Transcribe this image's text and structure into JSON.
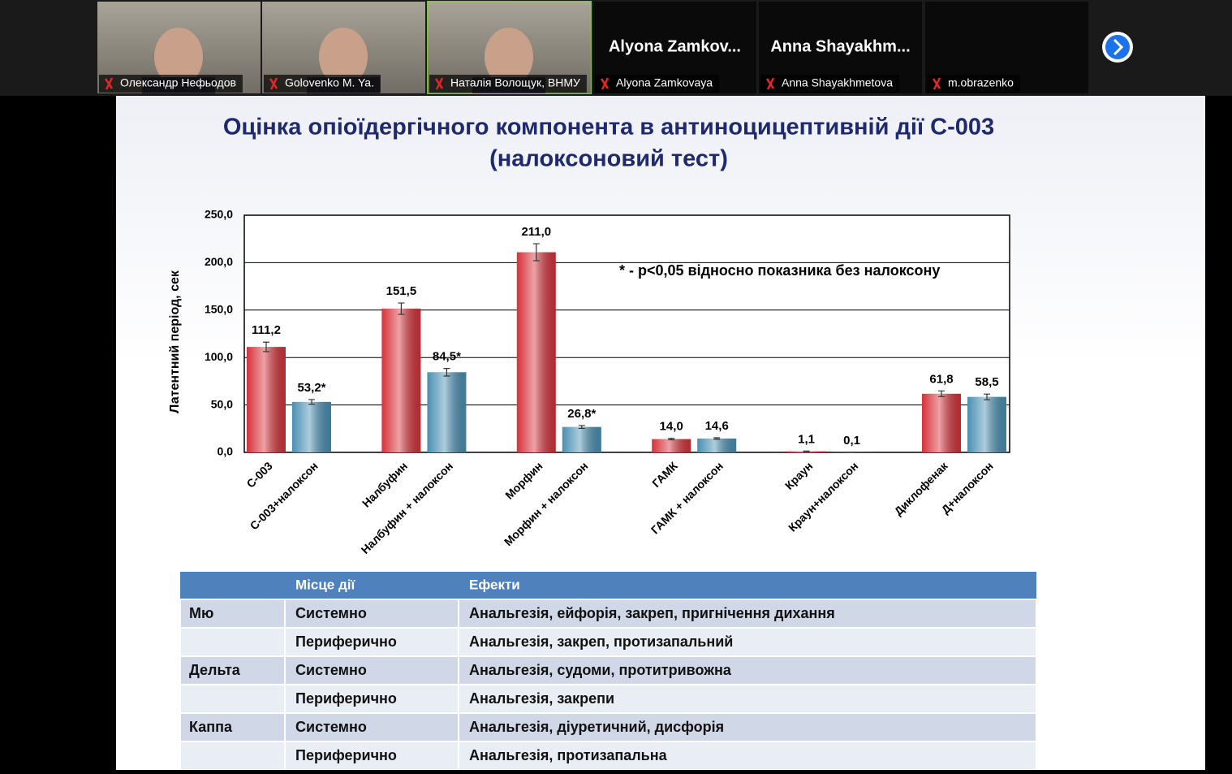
{
  "participants": [
    {
      "name": "Олександр Нефьодов"
    },
    {
      "name": "Golovenko M. Ya."
    },
    {
      "name": "Наталія Волощук, ВНМУ"
    },
    {
      "heading": "Alyona  Zamkov...",
      "name": "Alyona Zamkovaya"
    },
    {
      "heading": "Anna  Shayakhm...",
      "name": "Anna Shayakhmetova"
    },
    {
      "name": "m.obrazenko"
    }
  ],
  "slide": {
    "title": "Оцінка опіоїдергічного компонента в антиноцицептивній дії С-003",
    "subtitle": "(налоксоновий тест)",
    "chart_data": {
      "type": "bar",
      "ylabel": "Латентний період, сек",
      "annotation": "* - p<0,05 відносно показника без налоксону",
      "categories": [
        "С-003",
        "С-003+налоксон",
        "Налбуфин",
        "Налбуфин + налоксон",
        "Морфин",
        "Морфин + налоксон",
        "ГАМК",
        "ГАМК + налоксон",
        "Краун",
        "Краун+налоксон",
        "Диклофенак",
        "Д+налоксон"
      ],
      "values": [
        111.2,
        53.2,
        151.5,
        84.5,
        211.0,
        26.8,
        14.0,
        14.6,
        1.1,
        0.1,
        61.8,
        58.5
      ],
      "value_labels": [
        "111,2",
        "53,2*",
        "151,5",
        "84,5*",
        "211,0",
        "26,8*",
        "14,0",
        "14,6",
        "1,1",
        "0,1",
        "61,8",
        "58,5"
      ],
      "errors": [
        5,
        2.5,
        6,
        4,
        9,
        1.5,
        0.8,
        0.8,
        0.3,
        0,
        3,
        3
      ],
      "colors": [
        "#d7313a",
        "#4a90b3",
        "#d7313a",
        "#4a90b3",
        "#d7313a",
        "#4a90b3",
        "#d7313a",
        "#4a90b3",
        "#d7313a",
        "#4a90b3",
        "#d7313a",
        "#4a90b3"
      ],
      "ylim": [
        0,
        250
      ],
      "yticks": [
        {
          "value": 0,
          "label": "0,0"
        },
        {
          "value": 50,
          "label": "50,0"
        },
        {
          "value": 100,
          "label": "100,0"
        },
        {
          "value": 150,
          "label": "150,0"
        },
        {
          "value": 200,
          "label": "200,0"
        },
        {
          "value": 250,
          "label": "250,0"
        }
      ],
      "grid": true
    },
    "table": {
      "header": [
        "Місце дії",
        "Ефекти"
      ],
      "rows": [
        [
          "Мю",
          "Системно",
          "Анальгезія, ейфорія, закреп, пригнічення дихання"
        ],
        [
          null,
          "Периферично",
          "Анальгезія, закреп, протизапальний"
        ],
        [
          "Дельта",
          "Системно",
          "Анальгезія, судоми, протитривожна"
        ],
        [
          null,
          "Периферично",
          "Анальгезія, закрепи"
        ],
        [
          "Каппа",
          "Системно",
          "Анальгезія, діуретичний, дисфорія"
        ],
        [
          null,
          "Периферично",
          "Анальгезія, протизапальна"
        ]
      ]
    }
  }
}
